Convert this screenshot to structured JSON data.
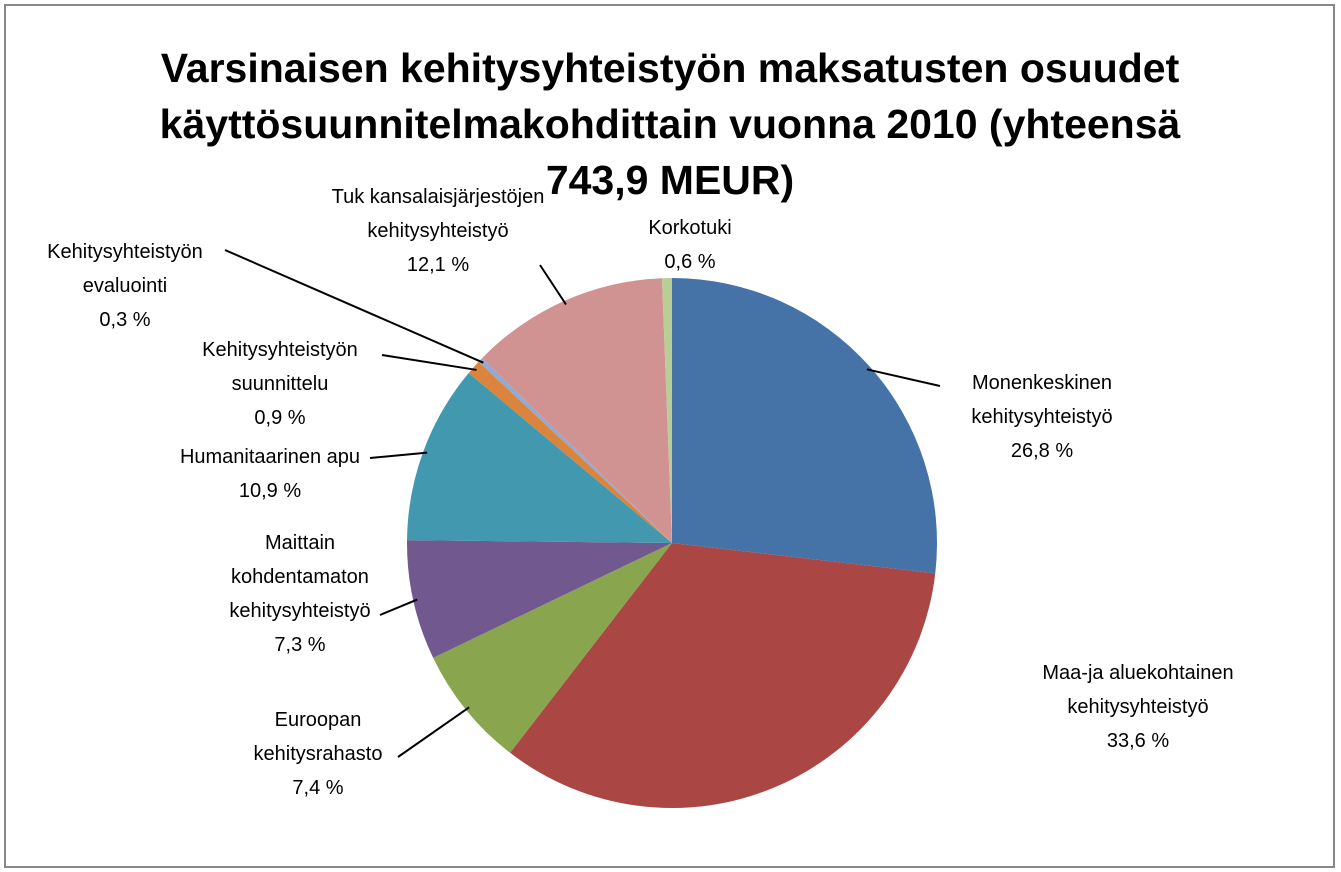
{
  "chart_data": {
    "type": "pie",
    "title": "Varsinaisen kehitysyhteistyön maksatusten osuudet käyttösuunnitelmakohdittain vuonna 2010 (yhteensä 743,9 MEUR)",
    "categories": [
      "Monenkeskinen kehitysyhteistyö",
      "Maa-ja aluekohtainen kehitysyhteistyö",
      "Euroopan kehitysrahasto",
      "Maittain kohdentamaton kehitysyhteistyö",
      "Humanitaarinen apu",
      "Kehitysyhteistyön suunnittelu",
      "Kehitysyhteistyön evaluointi",
      "Tuk kansalaisjärjestöjen kehitysyhteistyö",
      "Korkotuki"
    ],
    "values": [
      26.8,
      33.6,
      7.4,
      7.3,
      10.9,
      0.9,
      0.3,
      12.1,
      0.6
    ],
    "value_labels": [
      "26,8 %",
      "33,6 %",
      "7,4 %",
      "7,3 %",
      "10,9 %",
      "0,9 %",
      "0,3 %",
      "12,1 %",
      "0,6 %"
    ],
    "colors": [
      "#4572a7",
      "#aa4643",
      "#89a54e",
      "#71588f",
      "#4198af",
      "#db843d",
      "#93a9cf",
      "#d19392",
      "#b9cd96"
    ]
  }
}
